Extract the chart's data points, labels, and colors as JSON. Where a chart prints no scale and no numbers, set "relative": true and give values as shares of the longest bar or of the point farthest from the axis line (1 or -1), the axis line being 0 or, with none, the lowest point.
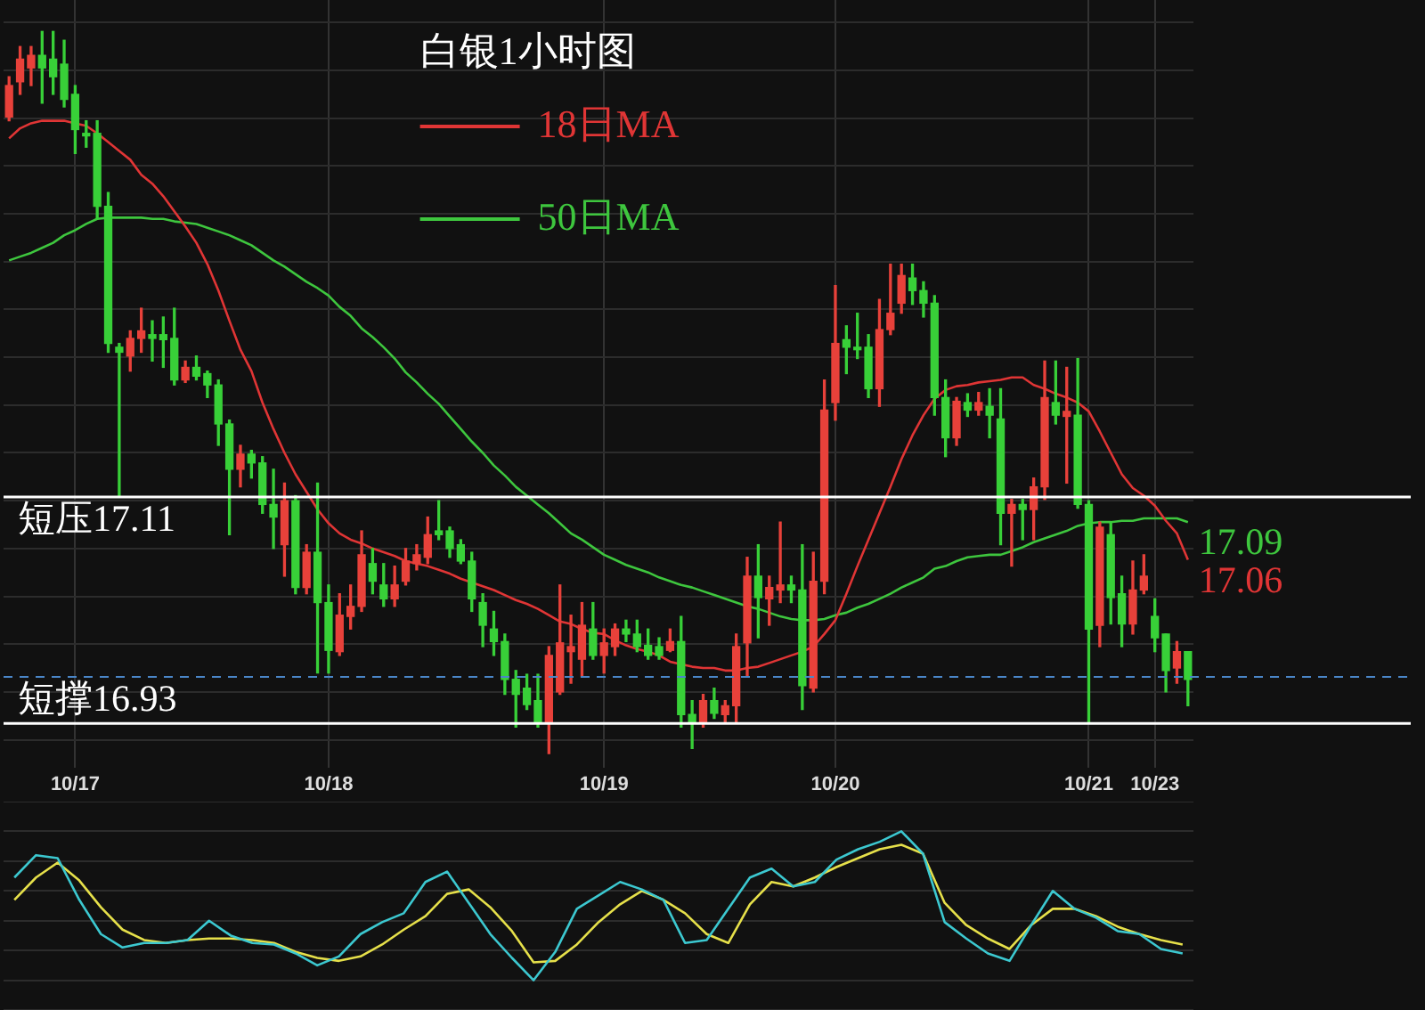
{
  "chart_data": [
    {
      "type": "candlestick",
      "title": "白银1小时图",
      "categories": [
        null,
        null,
        null,
        null,
        null,
        null,
        "10/17",
        null,
        null,
        null,
        null,
        null,
        null,
        null,
        null,
        null,
        null,
        null,
        null,
        null,
        null,
        null,
        null,
        null,
        null,
        null,
        null,
        null,
        null,
        "10/18",
        null,
        null,
        null,
        null,
        null,
        null,
        null,
        null,
        null,
        null,
        null,
        null,
        null,
        null,
        null,
        null,
        null,
        null,
        null,
        null,
        null,
        null,
        null,
        null,
        "10/19",
        null,
        null,
        null,
        null,
        null,
        null,
        null,
        null,
        null,
        null,
        null,
        null,
        null,
        null,
        null,
        null,
        null,
        null,
        null,
        null,
        "10/20",
        null,
        null,
        null,
        null,
        null,
        null,
        null,
        null,
        null,
        null,
        null,
        null,
        null,
        null,
        null,
        null,
        null,
        null,
        null,
        null,
        null,
        null,
        "10/21",
        null,
        null,
        null,
        null,
        null,
        "10/23",
        null,
        null,
        null
      ],
      "ohlc": [
        [
          17.412,
          17.444,
          17.409,
          17.437
        ],
        [
          17.44,
          17.468,
          17.43,
          17.458
        ],
        [
          17.451,
          17.468,
          17.437,
          17.461
        ],
        [
          17.461,
          17.48,
          17.423,
          17.451
        ],
        [
          17.458,
          17.48,
          17.43,
          17.444
        ],
        [
          17.454,
          17.473,
          17.42,
          17.426
        ],
        [
          17.43,
          17.437,
          17.383,
          17.402
        ],
        [
          17.399,
          17.409,
          17.388,
          17.397
        ],
        [
          17.399,
          17.409,
          17.331,
          17.341
        ],
        [
          17.341,
          17.352,
          17.225,
          17.232
        ],
        [
          17.229,
          17.232,
          17.111,
          17.225
        ],
        [
          17.222,
          17.242,
          17.21,
          17.236
        ],
        [
          17.236,
          17.26,
          17.225,
          17.242
        ],
        [
          17.239,
          17.25,
          17.218,
          17.236
        ],
        [
          17.239,
          17.253,
          17.213,
          17.235
        ],
        [
          17.236,
          17.26,
          17.199,
          17.203
        ],
        [
          17.203,
          17.218,
          17.201,
          17.213
        ],
        [
          17.213,
          17.222,
          17.203,
          17.206
        ],
        [
          17.208,
          17.21,
          17.189,
          17.199
        ],
        [
          17.199,
          17.203,
          17.151,
          17.168
        ],
        [
          17.168,
          17.171,
          17.08,
          17.132
        ],
        [
          17.132,
          17.151,
          17.118,
          17.144
        ],
        [
          17.144,
          17.147,
          17.125,
          17.137
        ],
        [
          17.137,
          17.142,
          17.097,
          17.104
        ],
        [
          17.104,
          17.132,
          17.069,
          17.094
        ],
        [
          17.072,
          17.121,
          17.047,
          17.107
        ],
        [
          17.107,
          17.111,
          17.033,
          17.038
        ],
        [
          17.038,
          17.072,
          17.033,
          17.066
        ],
        [
          17.066,
          17.121,
          16.97,
          17.026
        ],
        [
          17.026,
          17.04,
          16.97,
          16.988
        ],
        [
          16.987,
          17.033,
          16.984,
          17.016
        ],
        [
          17.015,
          17.04,
          17.005,
          17.023
        ],
        [
          17.023,
          17.083,
          17.019,
          17.064
        ],
        [
          17.057,
          17.069,
          17.033,
          17.043
        ],
        [
          17.04,
          17.057,
          17.023,
          17.029
        ],
        [
          17.029,
          17.055,
          17.023,
          17.04
        ],
        [
          17.043,
          17.069,
          17.04,
          17.059
        ],
        [
          17.057,
          17.072,
          17.052,
          17.064
        ],
        [
          17.062,
          17.094,
          17.057,
          17.08
        ],
        [
          17.083,
          17.107,
          17.076,
          17.08
        ],
        [
          17.083,
          17.086,
          17.062,
          17.069
        ],
        [
          17.072,
          17.076,
          17.057,
          17.059
        ],
        [
          17.059,
          17.066,
          17.019,
          17.029
        ],
        [
          17.026,
          17.033,
          16.991,
          17.008
        ],
        [
          17.005,
          17.019,
          16.984,
          16.995
        ],
        [
          16.995,
          17.001,
          16.953,
          16.965
        ],
        [
          16.965,
          16.972,
          16.927,
          16.953
        ],
        [
          16.958,
          16.969,
          16.941,
          16.945
        ],
        [
          16.948,
          16.969,
          16.927,
          16.931
        ],
        [
          16.931,
          16.991,
          16.906,
          16.984
        ],
        [
          16.955,
          17.04,
          16.953,
          16.994
        ],
        [
          16.987,
          17.016,
          16.962,
          16.991
        ],
        [
          16.981,
          17.026,
          16.967,
          17.008
        ],
        [
          17.005,
          17.026,
          16.981,
          16.984
        ],
        [
          16.984,
          17.005,
          16.97,
          16.994
        ],
        [
          16.991,
          17.009,
          16.984,
          17.005
        ],
        [
          17.005,
          17.012,
          16.995,
          17.001
        ],
        [
          17.001,
          17.012,
          16.987,
          16.991
        ],
        [
          16.992,
          17.005,
          16.981,
          16.984
        ],
        [
          16.991,
          16.998,
          16.981,
          16.984
        ],
        [
          16.988,
          17.005,
          16.987,
          16.995
        ],
        [
          16.995,
          17.015,
          16.927,
          16.937
        ],
        [
          16.937,
          16.948,
          16.91,
          16.93
        ],
        [
          16.93,
          16.953,
          16.927,
          16.948
        ],
        [
          16.948,
          16.958,
          16.934,
          16.938
        ],
        [
          16.937,
          16.948,
          16.93,
          16.944
        ],
        [
          16.944,
          17.001,
          16.93,
          16.991
        ],
        [
          16.994,
          17.062,
          16.967,
          17.047
        ],
        [
          17.047,
          17.072,
          16.998,
          17.03
        ],
        [
          17.029,
          17.047,
          17.008,
          17.038
        ],
        [
          17.036,
          17.09,
          17.026,
          17.04
        ],
        [
          17.04,
          17.047,
          17.026,
          17.036
        ],
        [
          17.036,
          17.072,
          16.941,
          16.96
        ],
        [
          16.958,
          17.066,
          16.955,
          17.043
        ],
        [
          17.043,
          17.203,
          17.033,
          17.179
        ],
        [
          17.185,
          17.278,
          17.171,
          17.232
        ],
        [
          17.235,
          17.246,
          17.208,
          17.229
        ],
        [
          17.229,
          17.256,
          17.22,
          17.227
        ],
        [
          17.229,
          17.239,
          17.189,
          17.196
        ],
        [
          17.196,
          17.267,
          17.182,
          17.243
        ],
        [
          17.243,
          17.295,
          17.239,
          17.256
        ],
        [
          17.264,
          17.295,
          17.256,
          17.286
        ],
        [
          17.284,
          17.295,
          17.263,
          17.274
        ],
        [
          17.274,
          17.281,
          17.253,
          17.264
        ],
        [
          17.264,
          17.27,
          17.175,
          17.189
        ],
        [
          17.189,
          17.203,
          17.142,
          17.157
        ],
        [
          17.157,
          17.189,
          17.151,
          17.186
        ],
        [
          17.185,
          17.192,
          17.174,
          17.179
        ],
        [
          17.179,
          17.193,
          17.175,
          17.185
        ],
        [
          17.182,
          17.196,
          17.157,
          17.175
        ],
        [
          17.172,
          17.196,
          17.072,
          17.097
        ],
        [
          17.097,
          17.108,
          17.055,
          17.104
        ],
        [
          17.104,
          17.108,
          17.076,
          17.1
        ],
        [
          17.1,
          17.125,
          17.076,
          17.118
        ],
        [
          17.118,
          17.218,
          17.108,
          17.189
        ],
        [
          17.185,
          17.218,
          17.168,
          17.175
        ],
        [
          17.174,
          17.213,
          17.121,
          17.178
        ],
        [
          17.175,
          17.22,
          17.101,
          17.104
        ],
        [
          17.104,
          17.107,
          16.93,
          17.005
        ],
        [
          17.008,
          17.09,
          16.991,
          17.086
        ],
        [
          17.08,
          17.09,
          17.009,
          17.03
        ],
        [
          17.033,
          17.047,
          16.991,
          17.009
        ],
        [
          17.009,
          17.059,
          17.001,
          17.036
        ],
        [
          17.036,
          17.064,
          17.033,
          17.047
        ],
        [
          17.015,
          17.029,
          16.987,
          16.998
        ],
        [
          17.001,
          17.001,
          16.955,
          16.972
        ],
        [
          16.974,
          16.995,
          16.962,
          16.987
        ],
        [
          16.987,
          16.987,
          16.944,
          16.965
        ]
      ],
      "colors": [
        "#e8413a",
        "#e8413a",
        "#e8413a",
        "#38d038",
        "#38d038",
        "#38d038",
        "#38d038",
        "#38d038",
        "#38d038",
        "#38d038",
        "#38d038",
        "#e8413a",
        "#e8413a",
        "#38d038",
        "#38d038",
        "#38d038",
        "#e8413a",
        "#38d038",
        "#38d038",
        "#38d038",
        "#38d038",
        "#e8413a",
        "#38d038",
        "#38d038",
        "#38d038",
        "#e8413a",
        "#38d038",
        "#e8413a",
        "#38d038",
        "#38d038",
        "#e8413a",
        "#e8413a",
        "#e8413a",
        "#38d038",
        "#38d038",
        "#e8413a",
        "#e8413a",
        "#e8413a",
        "#e8413a",
        "#38d038",
        "#38d038",
        "#38d038",
        "#38d038",
        "#38d038",
        "#38d038",
        "#38d038",
        "#38d038",
        "#38d038",
        "#38d038",
        "#e8413a",
        "#e8413a",
        "#e8413a",
        "#e8413a",
        "#38d038",
        "#e8413a",
        "#e8413a",
        "#38d038",
        "#38d038",
        "#38d038",
        "#38d038",
        "#e8413a",
        "#38d038",
        "#38d038",
        "#e8413a",
        "#38d038",
        "#e8413a",
        "#e8413a",
        "#e8413a",
        "#38d038",
        "#e8413a",
        "#e8413a",
        "#38d038",
        "#38d038",
        "#e8413a",
        "#e8413a",
        "#e8413a",
        "#38d038",
        "#38d038",
        "#38d038",
        "#e8413a",
        "#e8413a",
        "#e8413a",
        "#38d038",
        "#38d038",
        "#38d038",
        "#38d038",
        "#e8413a",
        "#38d038",
        "#e8413a",
        "#38d038",
        "#38d038",
        "#e8413a",
        "#38d038",
        "#e8413a",
        "#e8413a",
        "#38d038",
        "#e8413a",
        "#38d038",
        "#38d038",
        "#e8413a",
        "#38d038",
        "#38d038",
        "#e8413a",
        "#e8413a",
        "#38d038",
        "#38d038",
        "#e8413a",
        "#38d038"
      ],
      "series": [
        {
          "name": "18日MA",
          "type": "line",
          "color": "#e03535",
          "values": [
            17.395,
            17.403,
            17.407,
            17.409,
            17.409,
            17.409,
            17.407,
            17.405,
            17.399,
            17.392,
            17.385,
            17.378,
            17.366,
            17.359,
            17.349,
            17.337,
            17.325,
            17.312,
            17.295,
            17.274,
            17.25,
            17.227,
            17.21,
            17.185,
            17.164,
            17.145,
            17.128,
            17.114,
            17.1,
            17.089,
            17.081,
            17.076,
            17.073,
            17.069,
            17.066,
            17.063,
            17.059,
            17.057,
            17.055,
            17.052,
            17.049,
            17.045,
            17.042,
            17.039,
            17.036,
            17.032,
            17.028,
            17.025,
            17.021,
            17.016,
            17.011,
            17.009,
            17.005,
            17.002,
            17.001,
            16.996,
            16.992,
            16.989,
            16.987,
            16.984,
            16.979,
            16.977,
            16.975,
            16.974,
            16.974,
            16.972,
            16.972,
            16.974,
            16.975,
            16.978,
            16.981,
            16.984,
            16.987,
            16.991,
            17.001,
            17.012,
            17.033,
            17.055,
            17.076,
            17.097,
            17.118,
            17.14,
            17.159,
            17.175,
            17.188,
            17.195,
            17.198,
            17.199,
            17.201,
            17.202,
            17.203,
            17.205,
            17.205,
            17.199,
            17.196,
            17.192,
            17.189,
            17.185,
            17.178,
            17.162,
            17.145,
            17.128,
            17.117,
            17.111,
            17.103,
            17.091,
            17.081,
            17.06
          ],
          "value_labels": [
            null,
            null,
            null,
            null,
            null,
            null,
            null,
            null,
            null,
            null,
            null,
            null,
            null,
            null,
            null,
            null,
            null,
            null,
            null,
            null,
            null,
            null,
            null,
            null,
            null,
            null,
            null,
            null,
            null,
            null,
            null,
            null,
            null,
            null,
            null,
            null,
            null,
            null,
            null,
            null,
            null,
            null,
            null,
            null,
            null,
            null,
            null,
            null,
            null,
            null,
            null,
            null,
            null,
            null,
            null,
            null,
            null,
            null,
            null,
            null,
            null,
            null,
            null,
            null,
            null,
            null,
            null,
            null,
            null,
            null,
            null,
            null,
            null,
            null,
            null,
            null,
            null,
            null,
            null,
            null,
            null,
            null,
            null,
            null,
            null,
            null,
            null,
            null,
            null,
            null,
            null,
            null,
            null,
            null,
            null,
            null,
            null,
            null,
            null,
            null,
            null,
            null,
            null,
            null,
            null,
            null,
            null,
            "17.06"
          ]
        },
        {
          "name": "50日MA",
          "type": "line",
          "color": "#3ec63e",
          "values": [
            17.298,
            17.301,
            17.304,
            17.308,
            17.312,
            17.318,
            17.322,
            17.327,
            17.331,
            17.332,
            17.332,
            17.332,
            17.332,
            17.331,
            17.331,
            17.329,
            17.328,
            17.327,
            17.324,
            17.321,
            17.318,
            17.314,
            17.31,
            17.304,
            17.298,
            17.293,
            17.287,
            17.281,
            17.276,
            17.27,
            17.261,
            17.254,
            17.244,
            17.237,
            17.229,
            17.22,
            17.209,
            17.201,
            17.192,
            17.184,
            17.174,
            17.164,
            17.154,
            17.145,
            17.135,
            17.127,
            17.118,
            17.111,
            17.104,
            17.097,
            17.089,
            17.081,
            17.076,
            17.07,
            17.064,
            17.06,
            17.056,
            17.053,
            17.05,
            17.046,
            17.043,
            17.04,
            17.038,
            17.035,
            17.032,
            17.029,
            17.026,
            17.023,
            17.021,
            17.018,
            17.015,
            17.013,
            17.012,
            17.012,
            17.013,
            17.016,
            17.018,
            17.022,
            17.025,
            17.029,
            17.033,
            17.038,
            17.042,
            17.046,
            17.053,
            17.055,
            17.059,
            17.062,
            17.063,
            17.064,
            17.064,
            17.067,
            17.07,
            17.074,
            17.077,
            17.08,
            17.083,
            17.087,
            17.089,
            17.09,
            17.09,
            17.091,
            17.091,
            17.093,
            17.093,
            17.093,
            17.093,
            17.09
          ],
          "value_labels": [
            null,
            null,
            null,
            null,
            null,
            null,
            null,
            null,
            null,
            null,
            null,
            null,
            null,
            null,
            null,
            null,
            null,
            null,
            null,
            null,
            null,
            null,
            null,
            null,
            null,
            null,
            null,
            null,
            null,
            null,
            null,
            null,
            null,
            null,
            null,
            null,
            null,
            null,
            null,
            null,
            null,
            null,
            null,
            null,
            null,
            null,
            null,
            null,
            null,
            null,
            null,
            null,
            null,
            null,
            null,
            null,
            null,
            null,
            null,
            null,
            null,
            null,
            null,
            null,
            null,
            null,
            null,
            null,
            null,
            null,
            null,
            null,
            null,
            null,
            null,
            null,
            null,
            null,
            null,
            null,
            null,
            null,
            null,
            null,
            null,
            null,
            null,
            null,
            null,
            null,
            null,
            null,
            null,
            null,
            null,
            null,
            null,
            null,
            null,
            null,
            null,
            null,
            null,
            null,
            null,
            null,
            null,
            "17.09"
          ]
        }
      ],
      "ref_lines": [
        {
          "axis": "y",
          "value": 17.11,
          "label": "短压17.11",
          "color": "#ffffff"
        },
        {
          "axis": "y",
          "value": 16.93,
          "label": "短撑16.93",
          "color": "#ffffff"
        },
        {
          "axis": "y",
          "value": 16.967,
          "color": "#4a86c8",
          "line_style": "dashed"
        }
      ],
      "ylim": [
        16.895,
        17.505
      ],
      "yticks": [
        {
          "value": 17.487,
          "label": null
        },
        {
          "value": 17.449,
          "label": null
        },
        {
          "value": 17.411,
          "label": null
        },
        {
          "value": 17.373,
          "label": null
        },
        {
          "value": 17.335,
          "label": null
        },
        {
          "value": 17.297,
          "label": null
        },
        {
          "value": 17.259,
          "label": null
        },
        {
          "value": 17.221,
          "label": null
        },
        {
          "value": 17.183,
          "label": null
        },
        {
          "value": 17.145,
          "label": null
        },
        {
          "value": 17.107,
          "label": null
        },
        {
          "value": 17.069,
          "label": null
        },
        {
          "value": 17.031,
          "label": null
        },
        {
          "value": 16.993,
          "label": null
        },
        {
          "value": 16.955,
          "label": null
        },
        {
          "value": 16.917,
          "label": null
        }
      ],
      "tick_labels": "x",
      "grid": true,
      "legend": "top",
      "marker": "none"
    },
    {
      "type": "line",
      "relative": true,
      "categories": [
        null,
        null,
        null,
        null,
        null,
        null,
        null,
        null,
        null,
        null,
        null,
        null,
        null,
        null,
        null,
        null,
        null,
        null,
        null,
        null,
        null,
        null,
        null,
        null,
        null,
        null,
        null,
        null,
        null,
        null,
        null,
        null,
        null,
        null,
        null,
        null,
        null,
        null,
        null,
        null,
        null,
        null,
        null,
        null,
        null,
        null,
        null,
        null,
        null,
        null,
        null,
        null,
        null,
        null,
        null
      ],
      "series": [
        {
          "color": "#3cc8d0",
          "values": [
            0.69,
            0.84,
            0.82,
            0.54,
            0.31,
            0.22,
            0.25,
            0.25,
            0.27,
            0.4,
            0.3,
            0.25,
            0.24,
            0.18,
            0.1,
            0.16,
            0.31,
            0.39,
            0.45,
            0.66,
            0.73,
            0.52,
            0.31,
            0.15,
            0,
            0.19,
            0.48,
            0.57,
            0.66,
            0.61,
            0.54,
            0.25,
            0.27,
            0.48,
            0.69,
            0.75,
            0.63,
            0.66,
            0.81,
            0.88,
            0.93,
            1,
            0.85,
            0.39,
            0.28,
            0.18,
            0.13,
            0.37,
            0.6,
            0.48,
            0.42,
            0.33,
            0.31,
            0.21,
            0.18
          ]
        },
        {
          "color": "#e6e04a",
          "values": [
            0.54,
            0.69,
            0.79,
            0.67,
            0.49,
            0.34,
            0.27,
            0.25,
            0.27,
            0.28,
            0.28,
            0.27,
            0.25,
            0.19,
            0.15,
            0.13,
            0.16,
            0.24,
            0.34,
            0.43,
            0.58,
            0.61,
            0.49,
            0.33,
            0.12,
            0.13,
            0.24,
            0.39,
            0.51,
            0.6,
            0.54,
            0.45,
            0.31,
            0.25,
            0.51,
            0.66,
            0.63,
            0.69,
            0.76,
            0.82,
            0.88,
            0.91,
            0.85,
            0.52,
            0.37,
            0.28,
            0.21,
            0.37,
            0.48,
            0.48,
            0.43,
            0.36,
            0.31,
            0.27,
            0.24
          ]
        }
      ],
      "tick_labels": false,
      "grid": "y",
      "marker": "none"
    }
  ]
}
